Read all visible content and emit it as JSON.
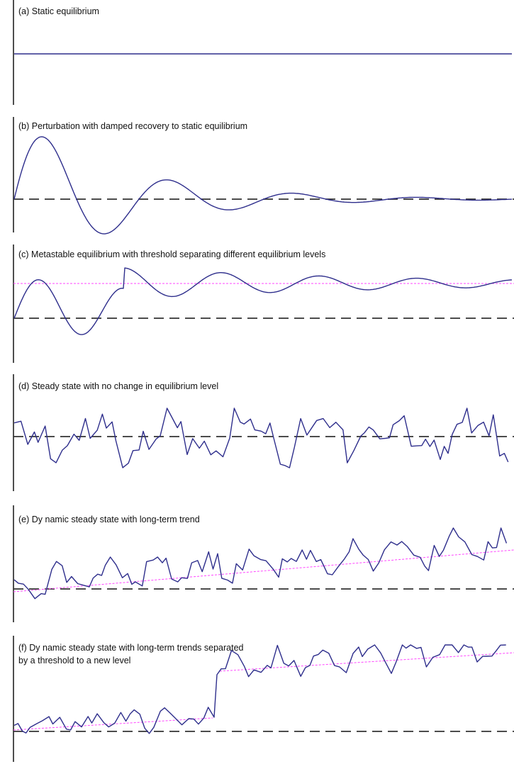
{
  "colors": {
    "series": "#2e2e8c",
    "trend": "#ff44ff",
    "baseline": "#333333",
    "axis": "#222222"
  },
  "panels": [
    {
      "id": "a",
      "caption": "(a) Static equilibrium",
      "pattern": "constant level"
    },
    {
      "id": "b",
      "caption": "(b) Perturbation with damped recovery to static equilibrium",
      "pattern": "damped oscillation returning to baseline"
    },
    {
      "id": "c",
      "caption": "(c) Metastable equilibrium with threshold separating different equilibrium levels",
      "pattern": "oscillation crossing threshold to a higher level"
    },
    {
      "id": "d",
      "caption": "(d) Steady state with no change in equilibrium level",
      "pattern": "irregular fluctuation around baseline"
    },
    {
      "id": "e",
      "caption": "(e) Dy namic steady state with long-term trend",
      "pattern": "irregular fluctuation with rising trend"
    },
    {
      "id": "f",
      "caption_lines": [
        "(f) Dy namic steady state with long-term trends separated",
        "by a threshold to a new level"
      ],
      "pattern": "irregular fluctuation with step to higher trend"
    }
  ]
}
